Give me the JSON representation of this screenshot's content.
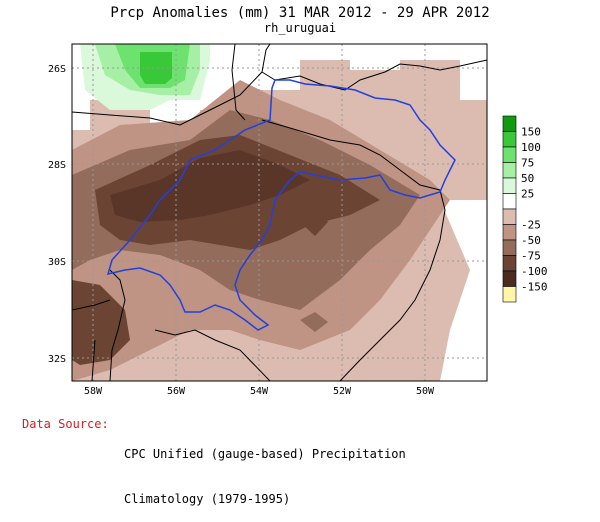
{
  "title": "Prcp Anomalies (mm) 31 MAR 2012 - 29 APR 2012",
  "subtitle": "rh_uruguai",
  "axes": {
    "lat_labels": [
      "26S",
      "28S",
      "30S",
      "32S"
    ],
    "lon_labels": [
      "58W",
      "56W",
      "54W",
      "52W",
      "50W"
    ]
  },
  "legend": {
    "items": [
      {
        "label": "150",
        "color": "#109a10"
      },
      {
        "label": "100",
        "color": "#38c838"
      },
      {
        "label": "75",
        "color": "#6ee26e"
      },
      {
        "label": "50",
        "color": "#a6f0a6"
      },
      {
        "label": "25",
        "color": "#daf8da"
      },
      {
        "label": "",
        "color": "#ffffff"
      },
      {
        "label": "-25",
        "color": "#dcbcb0"
      },
      {
        "label": "-50",
        "color": "#c09484"
      },
      {
        "label": "-75",
        "color": "#946c5c"
      },
      {
        "label": "-100",
        "color": "#6c4434"
      },
      {
        "label": "-150",
        "color": "#4c2c20"
      },
      {
        "label": "",
        "color": "#fff6a8"
      }
    ]
  },
  "source": {
    "label": "Data Source:",
    "line1": "CPC Unified (gauge-based) Precipitation",
    "line2": "Climatology (1979-1995)"
  },
  "colors": {
    "basin_outline": "#2040e0",
    "coastline": "#000000",
    "grid": "#888888"
  }
}
